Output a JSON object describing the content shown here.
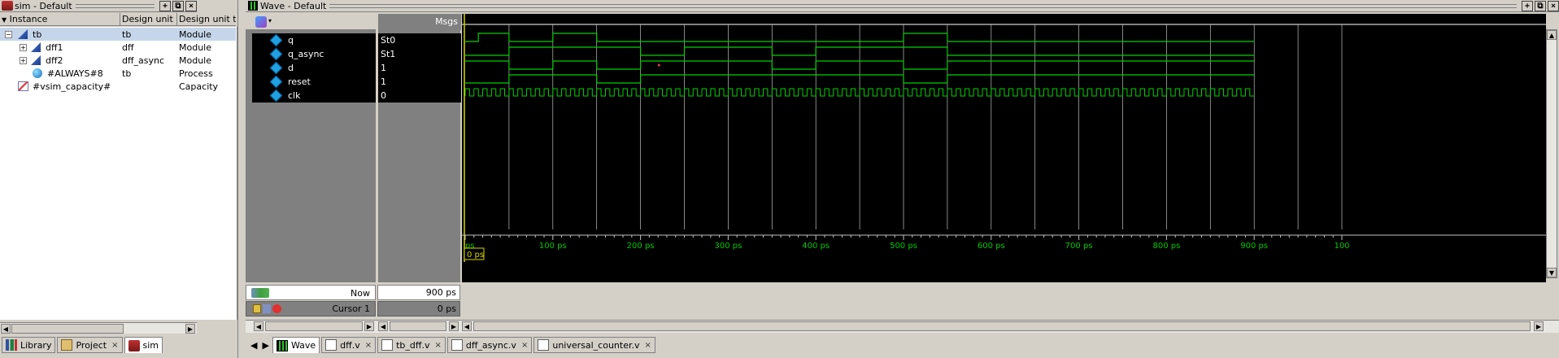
{
  "left_panel": {
    "title": "sim - Default",
    "columns": [
      "Instance",
      "Design unit",
      "Design unit typ"
    ],
    "rows": [
      {
        "instance": "tb",
        "unit": "tb",
        "type": "Module"
      },
      {
        "instance": "dff1",
        "unit": "dff",
        "type": "Module"
      },
      {
        "instance": "dff2",
        "unit": "dff_async",
        "type": "Module"
      },
      {
        "instance": "#ALWAYS#8",
        "unit": "tb",
        "type": "Process"
      },
      {
        "instance": "#vsim_capacity#",
        "unit": "",
        "type": "Capacity"
      }
    ],
    "tabs": [
      {
        "label": "Library"
      },
      {
        "label": "Project"
      },
      {
        "label": "sim"
      }
    ]
  },
  "wave": {
    "title": "Wave - Default",
    "msgs_header": "Msgs",
    "signals": [
      {
        "name": "q",
        "value": "St0"
      },
      {
        "name": "q_async",
        "value": "St1"
      },
      {
        "name": "d",
        "value": "1"
      },
      {
        "name": "reset",
        "value": "1"
      },
      {
        "name": "clk",
        "value": "0"
      }
    ],
    "now_label": "Now",
    "now_value": "900 ps",
    "cursor_label": "Cursor 1",
    "cursor_value": "0 ps",
    "cursor_time_box": "0 ps",
    "time_labels": [
      "ps",
      "100 ps",
      "200 ps",
      "300 ps",
      "400 ps",
      "500 ps",
      "600 ps",
      "700 ps",
      "800 ps",
      "900 ps",
      "100"
    ],
    "tabs": [
      {
        "label": "Wave"
      },
      {
        "label": "dff.v"
      },
      {
        "label": "tb_dff.v"
      },
      {
        "label": "dff_async.v"
      },
      {
        "label": "universal_counter.v"
      }
    ]
  },
  "colors": {
    "wave": "#00d000",
    "background": "#000000",
    "cursor": "#d4d400",
    "time_text": "#00c800"
  },
  "waveform_data": {
    "time_unit": "ps",
    "end_time": 900,
    "q": [
      [
        0,
        0
      ],
      [
        15,
        1
      ],
      [
        50,
        0
      ],
      [
        100,
        1
      ],
      [
        150,
        0
      ],
      [
        500,
        1
      ],
      [
        550,
        0
      ]
    ],
    "q_async": [
      [
        0,
        0
      ],
      [
        50,
        1
      ],
      [
        200,
        0
      ],
      [
        250,
        1
      ],
      [
        350,
        0
      ],
      [
        400,
        1
      ],
      [
        550,
        0
      ]
    ],
    "d": [
      [
        0,
        1
      ],
      [
        50,
        0
      ],
      [
        100,
        1
      ],
      [
        150,
        0
      ],
      [
        200,
        1
      ],
      [
        350,
        0
      ],
      [
        400,
        1
      ],
      [
        500,
        0
      ],
      [
        550,
        1
      ]
    ],
    "reset": [
      [
        0,
        0
      ],
      [
        50,
        1
      ],
      [
        150,
        0
      ],
      [
        200,
        1
      ],
      [
        500,
        0
      ],
      [
        550,
        1
      ]
    ],
    "clk_period": 10
  }
}
